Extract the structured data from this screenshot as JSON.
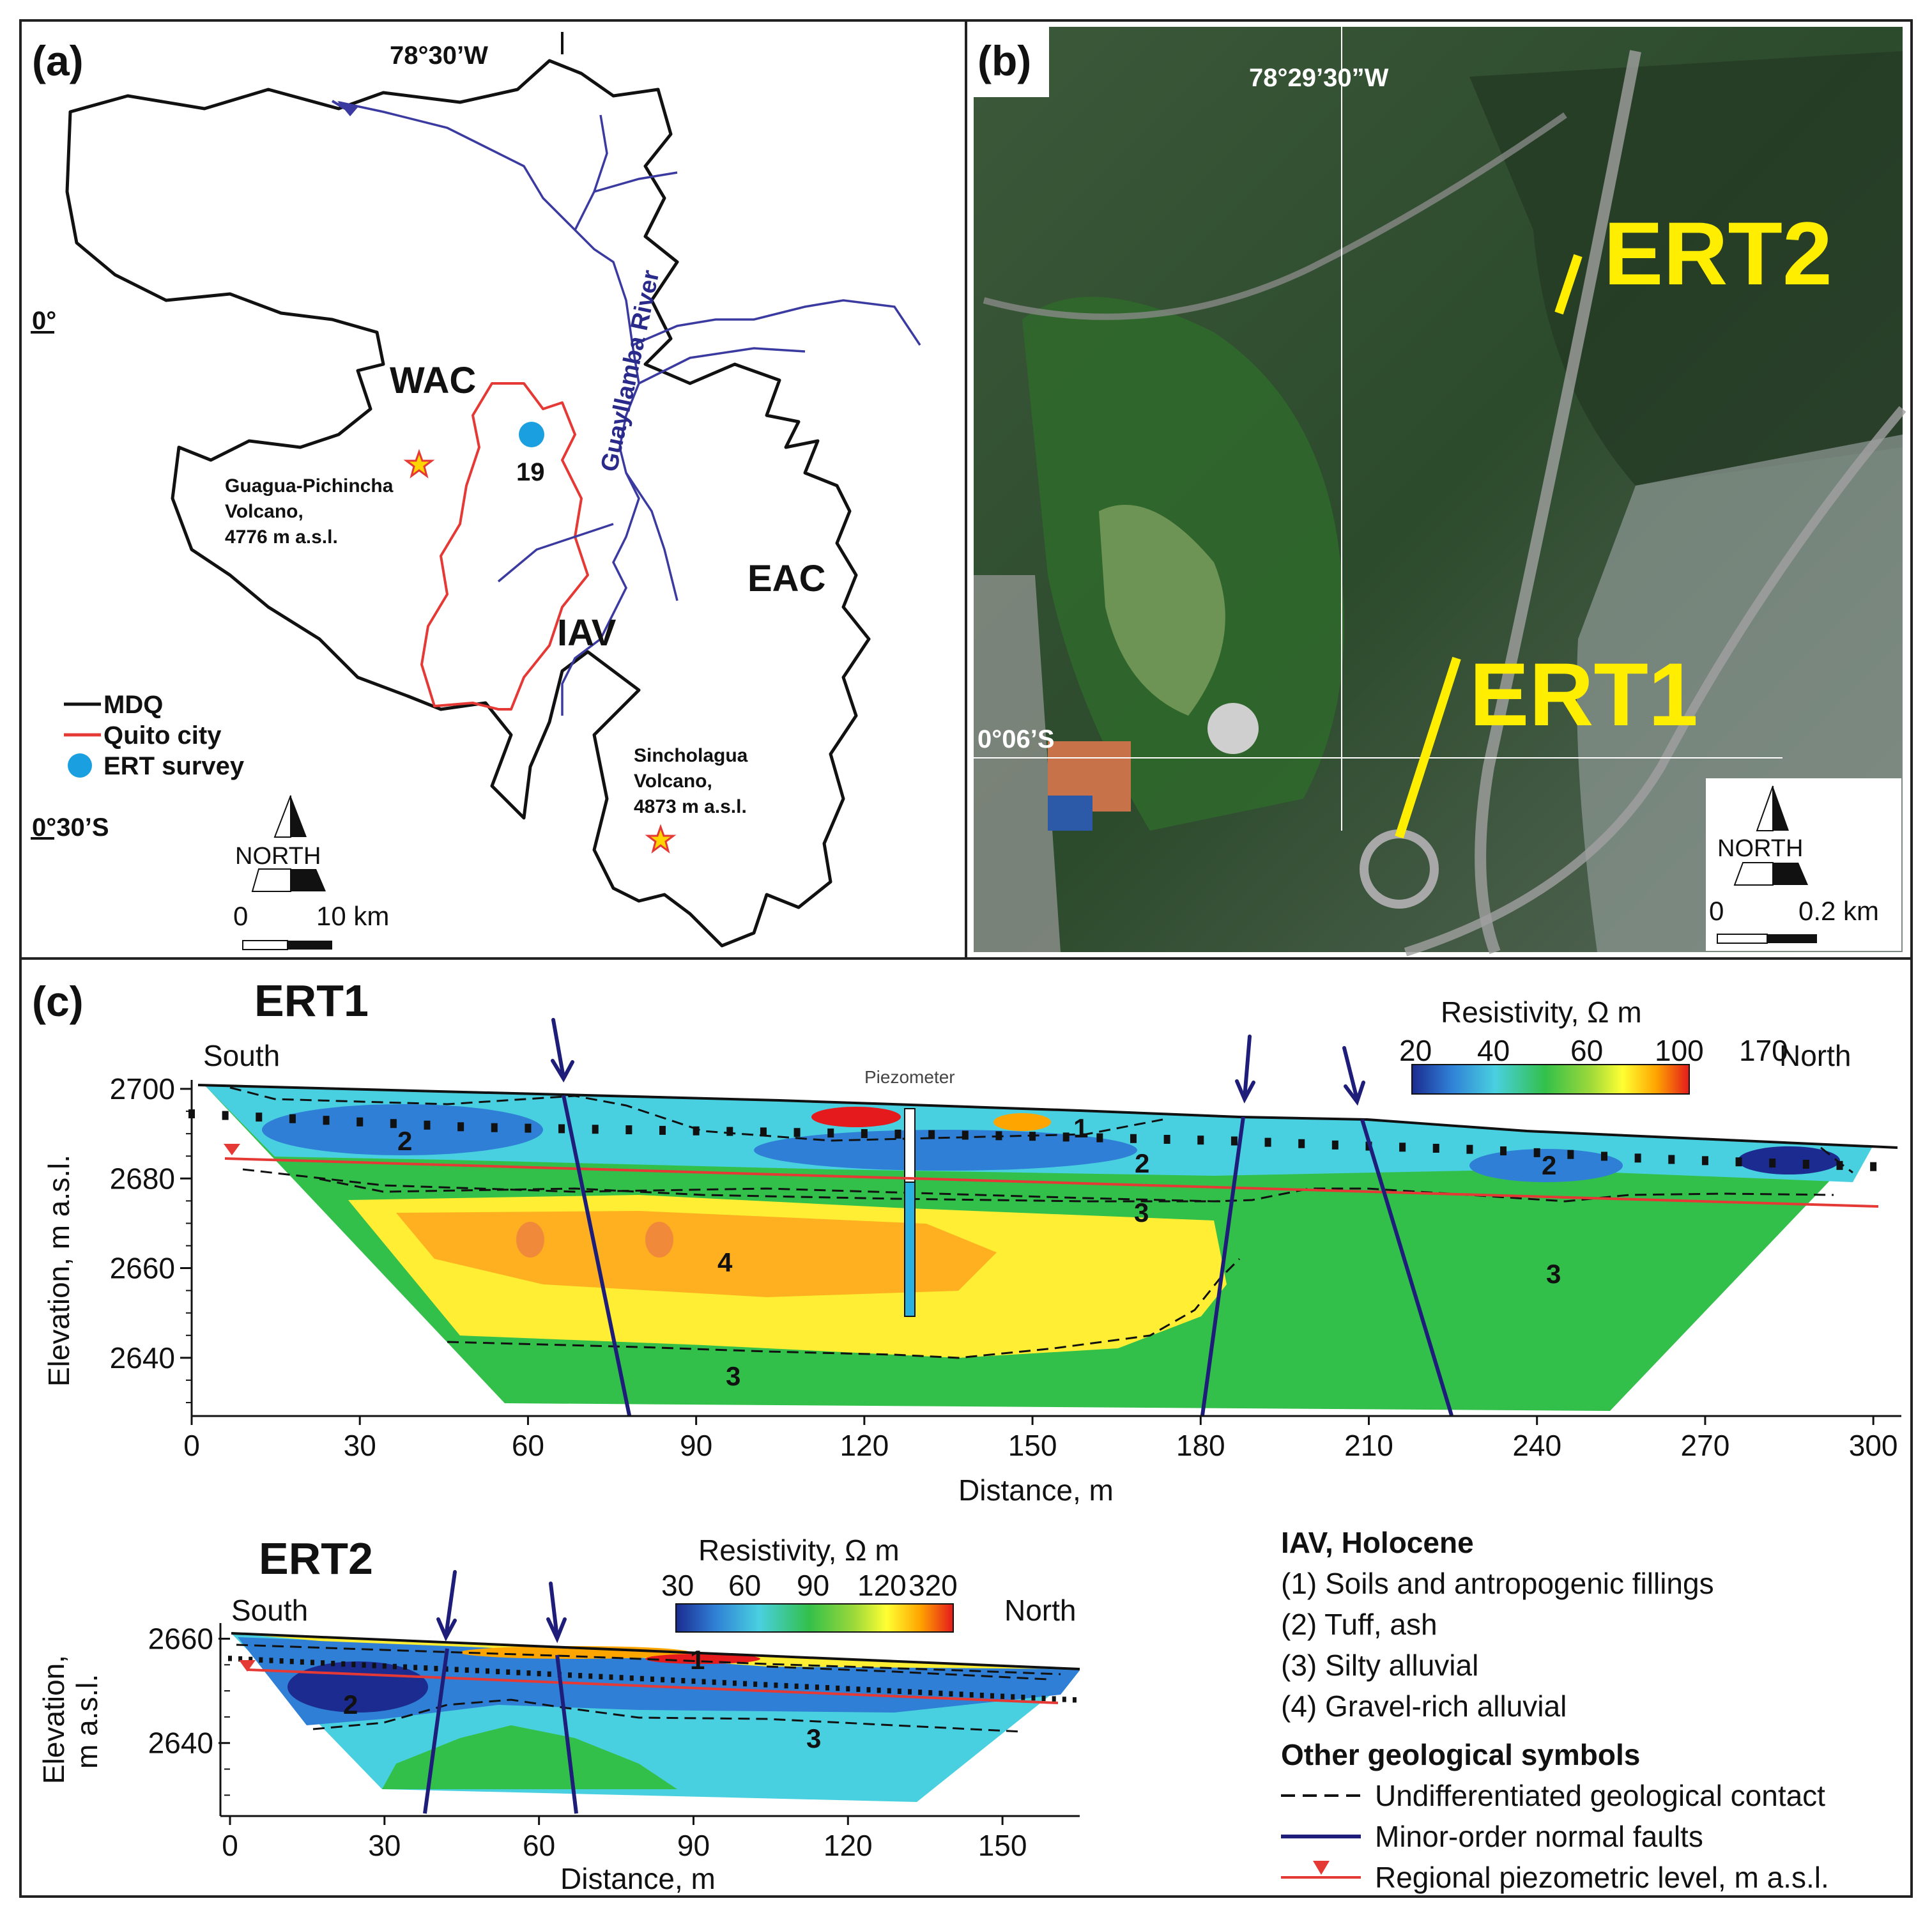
{
  "panel_a": {
    "label": "(a)",
    "lon_label": "78°30’W",
    "lat_labels": [
      "0°",
      "0°30’S"
    ],
    "region_labels": {
      "wac": "WAC",
      "iav": "IAV",
      "eac": "EAC"
    },
    "river_label": "Guayllamba River",
    "site_number": "19",
    "volcano_1": [
      "Guagua-Pichincha",
      "Volcano,",
      "4776 m a.s.l."
    ],
    "volcano_2": [
      "Sincholagua",
      "Volcano,",
      "4873 m a.s.l."
    ],
    "legend": {
      "mdq": "MDQ",
      "quito": "Quito city",
      "ert": "ERT survey"
    },
    "north": "NORTH",
    "scale": {
      "zero": "0",
      "dist": "10 km"
    },
    "colors": {
      "boundary": "#111111",
      "city": "#e53935",
      "river": "#3a3aa0",
      "survey_dot": "#1aa0e0",
      "star": "#ffd400"
    }
  },
  "panel_b": {
    "label": "(b)",
    "lon_label": "78°29’30”W",
    "lat_label": "0°06’S",
    "ert_labels": {
      "ert1": "ERT1",
      "ert2": "ERT2"
    },
    "north": "NORTH",
    "scale": {
      "zero": "0",
      "dist": "0.2 km"
    },
    "colors": {
      "ert_line": "#ffee00"
    }
  },
  "panel_c": {
    "label": "(c)",
    "ert1": {
      "title": "ERT1",
      "south": "South",
      "north": "North",
      "piezometer": "Piezometer",
      "ylabel": "Elevation, m a.s.l.",
      "xlabel": "Distance, m",
      "colorbar_title": "Resistivity, Ω m",
      "colorbar_ticks": [
        "20",
        "40",
        "60",
        "100",
        "170"
      ],
      "unit_numbers": {
        "u1": "1",
        "u2a": "2",
        "u2b": "2",
        "u2c": "2",
        "u3a": "3",
        "u3b": "3",
        "u3c": "3",
        "u4": "4"
      }
    },
    "ert2": {
      "title": "ERT2",
      "south": "South",
      "north": "North",
      "ylabel": [
        "Elevation,",
        "m a.s.l."
      ],
      "xlabel": "Distance, m",
      "colorbar_title": "Resistivity, Ω m",
      "colorbar_ticks": [
        "30",
        "60",
        "90",
        "120",
        "320"
      ],
      "unit_numbers": {
        "u1": "1",
        "u2": "2",
        "u3": "3"
      }
    },
    "legend": {
      "heading_1": "IAV, Holocene",
      "units": [
        "(1) Soils and antropogenic fillings",
        "(2) Tuff, ash",
        "(3) Silty alluvial",
        "(4) Gravel-rich alluvial"
      ],
      "heading_2": "Other geological symbols",
      "symbols": [
        "Undifferentiated geological contact",
        "Minor-order normal faults",
        "Regional piezometric level, m a.s.l."
      ]
    },
    "colors": {
      "fault": "#1e1e7a",
      "piezometric": "#e53935",
      "colorbar": [
        "#1b2b8f",
        "#2f7fd6",
        "#49d0e0",
        "#33c04a",
        "#9ad83a",
        "#ffff33",
        "#ffa500",
        "#e41a1c"
      ]
    }
  },
  "chart_data": [
    {
      "type": "heatmap",
      "title": "ERT1",
      "xlabel": "Distance, m",
      "ylabel": "Elevation, m a.s.l.",
      "x_ticks": [
        0,
        30,
        60,
        90,
        120,
        150,
        180,
        210,
        240,
        270,
        300
      ],
      "y_ticks": [
        2640,
        2660,
        2680,
        2700
      ],
      "xlim": [
        0,
        305
      ],
      "ylim": [
        2627,
        2702
      ],
      "colorbar_ticks": [
        20,
        40,
        60,
        100,
        170
      ],
      "colorbar_label": "Resistivity, Ω m",
      "surface": [
        [
          0,
          2694
        ],
        [
          50,
          2691
        ],
        [
          100,
          2690
        ],
        [
          150,
          2689
        ],
        [
          185,
          2688
        ],
        [
          205,
          2687
        ],
        [
          230,
          2686
        ],
        [
          260,
          2684
        ],
        [
          305,
          2682
        ]
      ],
      "faults": [
        [
          [
            72,
            2693
          ],
          [
            85,
            2628
          ]
        ],
        [
          [
            206,
            2688
          ],
          [
            198,
            2628
          ]
        ],
        [
          [
            229,
            2686
          ],
          [
            248,
            2628
          ]
        ]
      ],
      "piezometric_level": [
        [
          7,
          2680
        ],
        [
          305,
          2671
        ]
      ],
      "piezometer_x": 141
    },
    {
      "type": "heatmap",
      "title": "ERT2",
      "xlabel": "Distance, m",
      "ylabel": "Elevation, m a.s.l.",
      "x_ticks": [
        0,
        30,
        60,
        90,
        120,
        150
      ],
      "y_ticks": [
        2640,
        2660
      ],
      "xlim": [
        0,
        165
      ],
      "ylim": [
        2626,
        2663
      ],
      "colorbar_ticks": [
        30,
        60,
        90,
        120,
        320
      ],
      "colorbar_label": "Resistivity, Ω m",
      "surface": [
        [
          0,
          2656
        ],
        [
          165,
          2648
        ]
      ],
      "faults": [
        [
          [
            43,
            2654
          ],
          [
            38,
            2626
          ]
        ],
        [
          [
            63,
            2653
          ],
          [
            68,
            2626
          ]
        ]
      ],
      "piezometric_level": [
        [
          3,
          2646
        ],
        [
          160,
          2643
        ]
      ]
    }
  ]
}
